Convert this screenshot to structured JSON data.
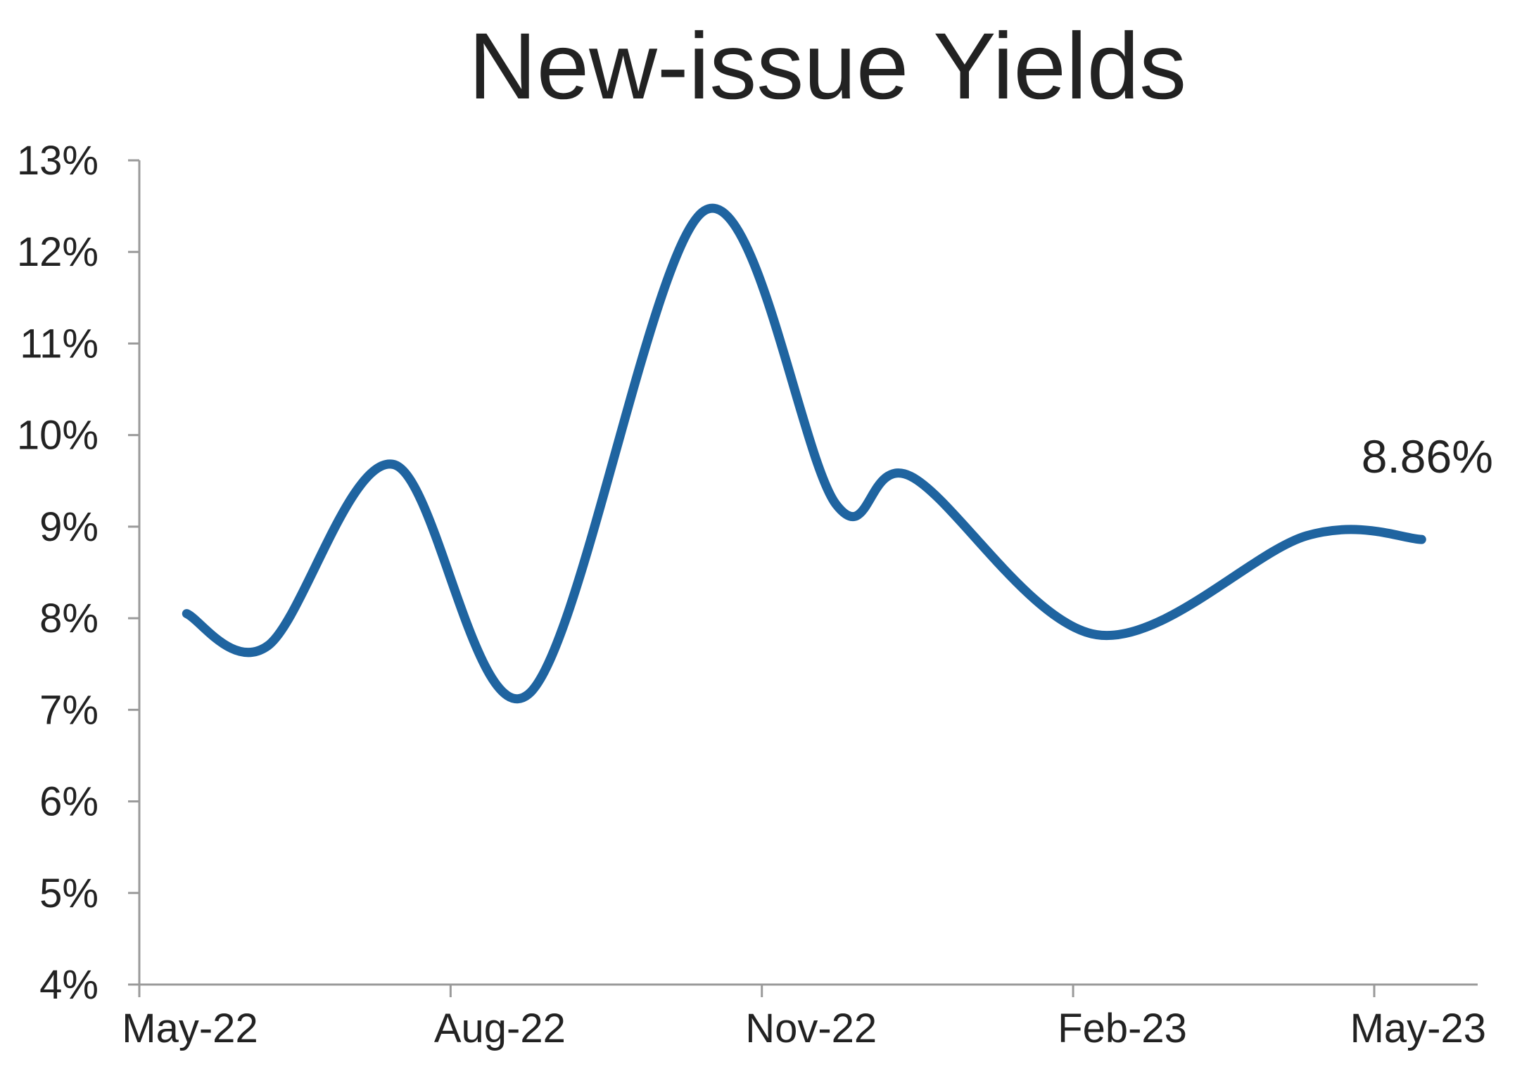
{
  "chart_data": {
    "type": "line",
    "title": "New-issue Yields",
    "xlabel": "",
    "ylabel": "",
    "x_range": [
      "2022-05-01",
      "2023-05-01"
    ],
    "ylim": [
      4,
      13
    ],
    "y_ticks": [
      4,
      5,
      6,
      7,
      8,
      9,
      10,
      11,
      12,
      13
    ],
    "y_tick_labels": [
      "4%",
      "5%",
      "6%",
      "7%",
      "8%",
      "9%",
      "10%",
      "11%",
      "12%",
      "13%"
    ],
    "x_ticks": [
      "2022-05-01",
      "2022-08-01",
      "2022-11-01",
      "2023-02-01",
      "2023-05-01"
    ],
    "x_tick_labels": [
      "May-22",
      "Aug-22",
      "Nov-22",
      "Feb-23",
      "May-23"
    ],
    "grid": false,
    "legend": "none",
    "series": [
      {
        "color": "#1f64a0",
        "points": [
          {
            "x": "2022-05-15",
            "y": 8.05
          },
          {
            "x": "2022-06-08",
            "y": 7.7
          },
          {
            "x": "2022-07-15",
            "y": 9.68
          },
          {
            "x": "2022-08-24",
            "y": 7.17
          },
          {
            "x": "2022-10-15",
            "y": 12.45
          },
          {
            "x": "2022-11-23",
            "y": 9.24
          },
          {
            "x": "2022-12-15",
            "y": 9.55
          },
          {
            "x": "2023-02-08",
            "y": 7.82
          },
          {
            "x": "2023-04-11",
            "y": 8.9
          },
          {
            "x": "2023-05-15",
            "y": 8.86
          }
        ]
      }
    ],
    "annotations": [
      {
        "text": "8.86%",
        "x": "2023-05-15",
        "y": 8.86
      }
    ]
  }
}
